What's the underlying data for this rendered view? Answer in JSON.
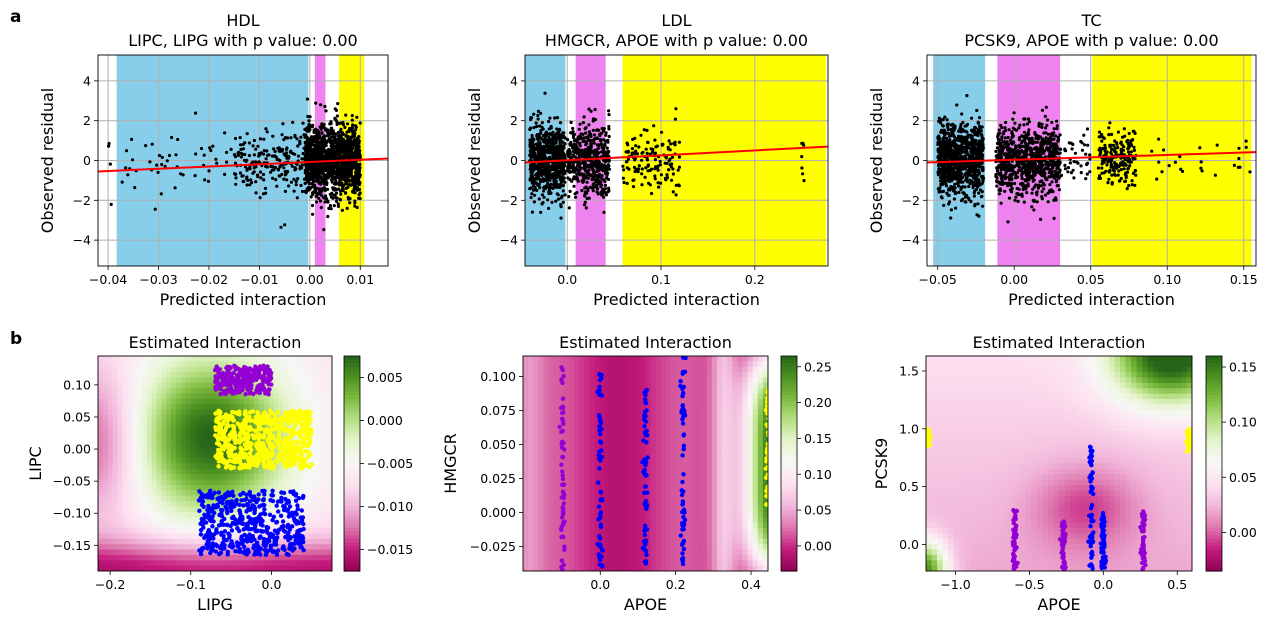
{
  "panel_labels": [
    "a",
    "b"
  ],
  "chart_data": [
    {
      "type": "scatter",
      "title": "HDL",
      "subtitle": "LIPC, LIPG with p value: 0.00",
      "xlabel": "Predicted interaction",
      "ylabel": "Observed residual",
      "xlim": [
        -0.042,
        0.0155
      ],
      "ylim": [
        -5.3,
        5.3
      ],
      "xticks": [
        -0.04,
        -0.03,
        -0.02,
        -0.01,
        0.0,
        0.01
      ],
      "xtick_labels": [
        "−0.04",
        "−0.03",
        "−0.02",
        "−0.01",
        "0.00",
        "0.01"
      ],
      "yticks": [
        -4,
        -2,
        0,
        2,
        4
      ],
      "ytick_labels": [
        "−4",
        "−2",
        "0",
        "2",
        "4"
      ],
      "grid": true,
      "background_bands": [
        {
          "x0": -0.0383,
          "x1": -0.0003,
          "color": "#87ceeb"
        },
        {
          "x0": 0.001,
          "x1": 0.0031,
          "color": "#ee82ee"
        },
        {
          "x0": 0.0058,
          "x1": 0.0108,
          "color": "#ffff00"
        }
      ],
      "point_clusters": [
        {
          "x0": -0.04,
          "x1": -0.01,
          "y_sd": 0.8,
          "n": 60
        },
        {
          "x0": -0.015,
          "x1": -0.001,
          "y_sd": 0.8,
          "n": 200
        },
        {
          "x0": -0.001,
          "x1": 0.01,
          "y_sd": 0.9,
          "n": 1400
        }
      ],
      "fit_line": {
        "x": [
          -0.042,
          0.0155
        ],
        "y": [
          -0.55,
          0.1
        ],
        "color": "#ff0000"
      }
    },
    {
      "type": "scatter",
      "title": "LDL",
      "subtitle": "HMGCR, APOE with p value: 0.00",
      "xlabel": "Predicted interaction",
      "ylabel": "Observed residual",
      "xlim": [
        -0.045,
        0.278
      ],
      "ylim": [
        -5.3,
        5.3
      ],
      "xticks": [
        0.0,
        0.1,
        0.2
      ],
      "xtick_labels": [
        "0.0",
        "0.1",
        "0.2"
      ],
      "yticks": [
        -4,
        -2,
        0,
        2,
        4
      ],
      "ytick_labels": [
        "−4",
        "−2",
        "0",
        "2",
        "4"
      ],
      "grid": true,
      "background_bands": [
        {
          "x0": -0.045,
          "x1": -0.002,
          "color": "#87ceeb"
        },
        {
          "x0": 0.009,
          "x1": 0.041,
          "color": "#ee82ee"
        },
        {
          "x0": 0.059,
          "x1": 0.276,
          "color": "#ffff00"
        }
      ],
      "point_clusters": [
        {
          "x0": -0.04,
          "x1": -0.002,
          "y_sd": 0.9,
          "n": 700
        },
        {
          "x0": 0.0,
          "x1": 0.045,
          "y_sd": 0.9,
          "n": 500
        },
        {
          "x0": 0.058,
          "x1": 0.12,
          "y_sd": 0.8,
          "n": 140
        },
        {
          "x0": 0.25,
          "x1": 0.26,
          "y_sd": 0.7,
          "n": 7
        }
      ],
      "fit_line": {
        "x": [
          -0.045,
          0.278
        ],
        "y": [
          -0.1,
          0.7
        ],
        "color": "#ff0000"
      }
    },
    {
      "type": "scatter",
      "title": "TC",
      "subtitle": "PCSK9, APOE with p value: 0.00",
      "xlabel": "Predicted interaction",
      "ylabel": "Observed residual",
      "xlim": [
        -0.057,
        0.158
      ],
      "ylim": [
        -5.3,
        5.3
      ],
      "xticks": [
        -0.05,
        0.0,
        0.05,
        0.1,
        0.15
      ],
      "xtick_labels": [
        "−0.05",
        "0.00",
        "0.05",
        "0.10",
        "0.15"
      ],
      "yticks": [
        -4,
        -2,
        0,
        2,
        4
      ],
      "ytick_labels": [
        "−4",
        "−2",
        "0",
        "2",
        "4"
      ],
      "grid": true,
      "background_bands": [
        {
          "x0": -0.053,
          "x1": -0.019,
          "color": "#87ceeb"
        },
        {
          "x0": -0.011,
          "x1": 0.03,
          "color": "#ee82ee"
        },
        {
          "x0": 0.051,
          "x1": 0.155,
          "color": "#ffff00"
        }
      ],
      "point_clusters": [
        {
          "x0": -0.05,
          "x1": -0.02,
          "y_sd": 0.9,
          "n": 900
        },
        {
          "x0": -0.012,
          "x1": 0.03,
          "y_sd": 0.9,
          "n": 800
        },
        {
          "x0": 0.03,
          "x1": 0.05,
          "y_sd": 0.6,
          "n": 40
        },
        {
          "x0": 0.055,
          "x1": 0.08,
          "y_sd": 0.7,
          "n": 200
        },
        {
          "x0": 0.08,
          "x1": 0.155,
          "y_sd": 0.6,
          "n": 25
        }
      ],
      "fit_line": {
        "x": [
          -0.057,
          0.158
        ],
        "y": [
          -0.1,
          0.42
        ],
        "color": "#ff0000"
      }
    },
    {
      "type": "heatmap",
      "title": "Estimated Interaction",
      "xlabel": "LIPG",
      "ylabel": "LIPC",
      "xlim": [
        -0.215,
        0.075
      ],
      "ylim": [
        -0.19,
        0.145
      ],
      "xticks": [
        -0.2,
        -0.1,
        0.0
      ],
      "xtick_labels": [
        "−0.2",
        "−0.1",
        "0.0"
      ],
      "yticks": [
        -0.15,
        -0.1,
        -0.05,
        0.0,
        0.05,
        0.1
      ],
      "ytick_labels": [
        "−0.15",
        "−0.10",
        "−0.05",
        "0.00",
        "0.05",
        "0.10"
      ],
      "colormap": "PiYG",
      "clim": [
        -0.0175,
        0.0075
      ],
      "colorbar_ticks": [
        -0.015,
        -0.01,
        -0.005,
        0.0,
        0.005
      ],
      "colorbar_tick_labels": [
        "−0.015",
        "−0.010",
        "−0.005",
        "0.000",
        "0.005"
      ],
      "point_groups": [
        {
          "color": "#0000ff",
          "region": "lower-center",
          "x0": -0.09,
          "x1": 0.04,
          "y0": -0.165,
          "y1": -0.065,
          "n": 500
        },
        {
          "color": "#ffff00",
          "region": "center",
          "x0": -0.07,
          "x1": 0.05,
          "y0": -0.03,
          "y1": 0.06,
          "n": 650
        },
        {
          "color": "#9400d3",
          "region": "upper-center",
          "x0": -0.07,
          "x1": 0.0,
          "y0": 0.085,
          "y1": 0.13,
          "n": 250
        }
      ]
    },
    {
      "type": "heatmap",
      "title": "Estimated Interaction",
      "xlabel": "APOE",
      "ylabel": "HMGCR",
      "xlim": [
        -0.205,
        0.445
      ],
      "ylim": [
        -0.043,
        0.115
      ],
      "xticks": [
        0.0,
        0.2,
        0.4
      ],
      "xtick_labels": [
        "0.0",
        "0.2",
        "0.4"
      ],
      "yticks": [
        -0.025,
        0.0,
        0.025,
        0.05,
        0.075,
        0.1
      ],
      "ytick_labels": [
        "−0.025",
        "0.000",
        "0.025",
        "0.050",
        "0.075",
        "0.100"
      ],
      "colormap": "PiYG",
      "clim": [
        -0.035,
        0.265
      ],
      "colorbar_ticks": [
        0.0,
        0.05,
        0.1,
        0.15,
        0.2,
        0.25
      ],
      "colorbar_tick_labels": [
        "0.00",
        "0.05",
        "0.10",
        "0.15",
        "0.20",
        "0.25"
      ],
      "point_groups": [
        {
          "color": "#9400d3",
          "x": -0.1,
          "y0": -0.043,
          "y1": 0.115
        },
        {
          "color": "#0000ff",
          "x": 0.0,
          "y0": -0.043,
          "y1": 0.11
        },
        {
          "color": "#0000ff",
          "x": 0.12,
          "y0": -0.04,
          "y1": 0.09
        },
        {
          "color": "#0000ff",
          "x": 0.22,
          "y0": -0.043,
          "y1": 0.115
        },
        {
          "color": "#ffff00",
          "x": 0.445,
          "y0": 0.0,
          "y1": 0.09
        }
      ]
    },
    {
      "type": "heatmap",
      "title": "Estimated Interaction",
      "xlabel": "APOE",
      "ylabel": "PCSK9",
      "xlim": [
        -1.2,
        0.6
      ],
      "ylim": [
        -0.23,
        1.63
      ],
      "xticks": [
        -1.0,
        -0.5,
        0.0,
        0.5
      ],
      "xtick_labels": [
        "−1.0",
        "−0.5",
        "0.0",
        "0.5"
      ],
      "yticks": [
        0.0,
        0.5,
        1.0,
        1.5
      ],
      "ytick_labels": [
        "0.0",
        "0.5",
        "1.0",
        "1.5"
      ],
      "colormap": "PiYG",
      "clim": [
        -0.035,
        0.16
      ],
      "colorbar_ticks": [
        0.0,
        0.05,
        0.1,
        0.15
      ],
      "colorbar_tick_labels": [
        "0.00",
        "0.05",
        "0.10",
        "0.15"
      ],
      "point_groups": [
        {
          "color": "#9400d3",
          "x": -0.6,
          "y0": -0.22,
          "y1": 0.3
        },
        {
          "color": "#9400d3",
          "x": -0.27,
          "y0": -0.22,
          "y1": 0.2
        },
        {
          "color": "#0000ff",
          "x": -0.08,
          "y0": -0.22,
          "y1": 0.85
        },
        {
          "color": "#0000ff",
          "x": 0.0,
          "y0": -0.22,
          "y1": 0.3
        },
        {
          "color": "#9400d3",
          "x": 0.27,
          "y0": -0.22,
          "y1": 0.3
        },
        {
          "color": "#ffff00",
          "x": -1.19,
          "y0": 0.85,
          "y1": 1.0
        },
        {
          "color": "#ffff00",
          "x": 0.58,
          "y0": 0.8,
          "y1": 1.0
        }
      ]
    }
  ]
}
